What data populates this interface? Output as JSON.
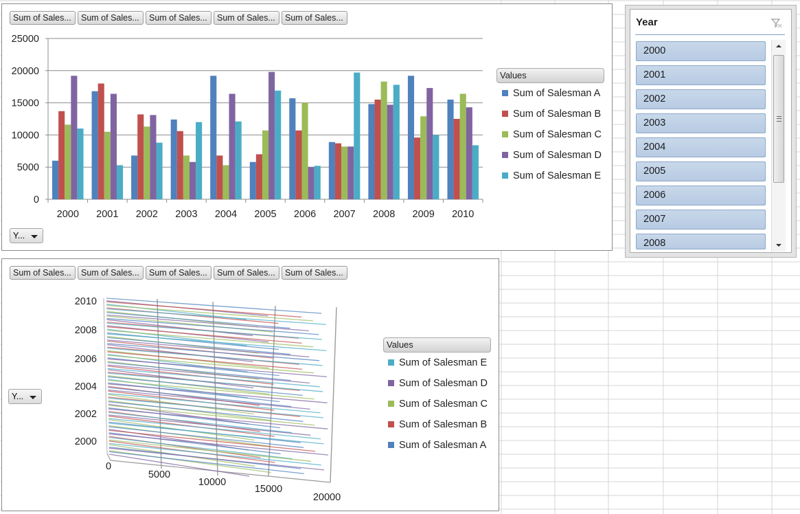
{
  "colors": {
    "salesman_a": "#4f81bd",
    "salesman_b": "#c0504d",
    "salesman_c": "#9bbb59",
    "salesman_d": "#8064a2",
    "salesman_e": "#4bacc6",
    "slicer_item": "#b8cce4"
  },
  "chart1": {
    "field_buttons": [
      "Sum of Sales...",
      "Sum of Sales...",
      "Sum of Sales...",
      "Sum of Sales...",
      "Sum of Sales..."
    ],
    "axis_field_button": "Y...",
    "legend_title": "Values",
    "legend_items": [
      "Sum of Salesman A",
      "Sum of Salesman B",
      "Sum of Salesman C",
      "Sum of Salesman D",
      "Sum of Salesman E"
    ]
  },
  "chart2": {
    "field_buttons": [
      "Sum of Sales...",
      "Sum of Sales...",
      "Sum of Sales...",
      "Sum of Sales...",
      "Sum of Sales..."
    ],
    "axis_field_button": "Y...",
    "legend_title": "Values",
    "legend_items": [
      "Sum of Salesman E",
      "Sum of Salesman D",
      "Sum of Salesman C",
      "Sum of Salesman B",
      "Sum of Salesman A"
    ]
  },
  "slicer": {
    "title": "Year",
    "items": [
      "2000",
      "2001",
      "2002",
      "2003",
      "2004",
      "2005",
      "2006",
      "2007",
      "2008"
    ],
    "clear_filter_icon": "clear-filter-icon"
  },
  "chart_data": [
    {
      "type": "bar",
      "categories": [
        "2000",
        "2001",
        "2002",
        "2003",
        "2004",
        "2005",
        "2006",
        "2007",
        "2008",
        "2009",
        "2010"
      ],
      "series": [
        {
          "name": "Sum of Salesman A",
          "values": [
            6000,
            16800,
            6800,
            12400,
            19200,
            5800,
            15700,
            8900,
            14800,
            19200,
            15500
          ]
        },
        {
          "name": "Sum of Salesman B",
          "values": [
            13700,
            18000,
            13200,
            10600,
            6800,
            7000,
            10700,
            8700,
            15500,
            9600,
            12500
          ]
        },
        {
          "name": "Sum of Salesman C",
          "values": [
            11600,
            10500,
            11300,
            6800,
            5300,
            10700,
            15000,
            8200,
            18300,
            12900,
            16400
          ]
        },
        {
          "name": "Sum of Salesman D",
          "values": [
            19200,
            16400,
            13100,
            5800,
            16400,
            19800,
            5000,
            8200,
            14700,
            17300,
            14300
          ]
        },
        {
          "name": "Sum of Salesman E",
          "values": [
            11000,
            5300,
            8800,
            12000,
            12100,
            16900,
            5200,
            19700,
            17800,
            10000,
            8400
          ]
        }
      ],
      "ylim": [
        0,
        25000
      ],
      "yticks": [
        "0",
        "5000",
        "10000",
        "15000",
        "20000",
        "25000"
      ],
      "grid": true,
      "legend_placement": "right"
    },
    {
      "type": "bar",
      "orientation": "horizontal-3d",
      "categories": [
        "2000",
        "2002",
        "2004",
        "2006",
        "2008",
        "2010"
      ],
      "xticks": [
        "0",
        "5000",
        "10000",
        "15000",
        "20000"
      ],
      "xlim": [
        0,
        20000
      ],
      "legend_placement": "right"
    }
  ]
}
